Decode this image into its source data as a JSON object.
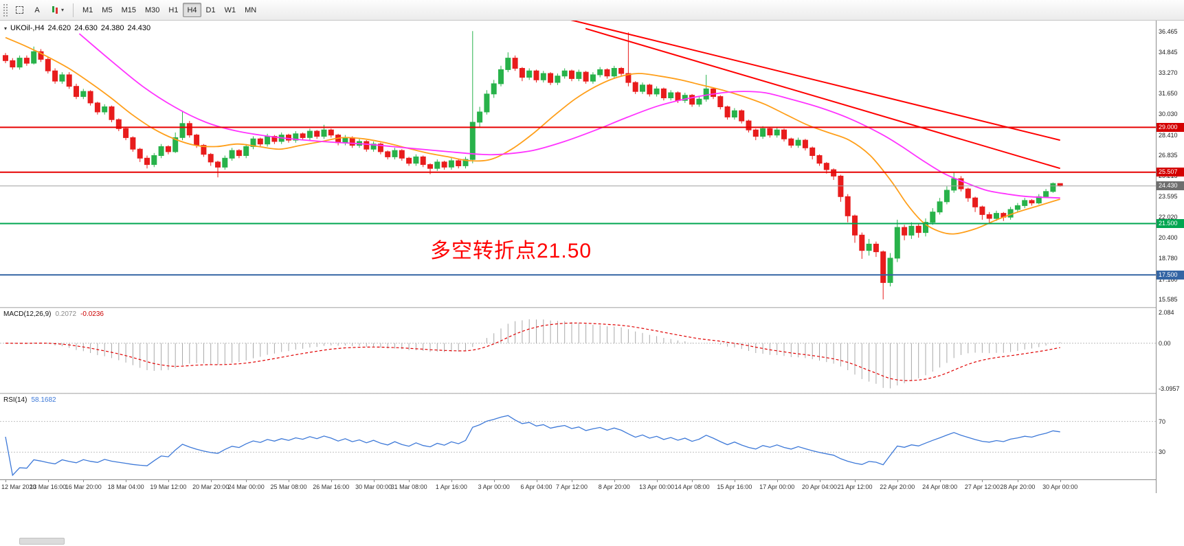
{
  "toolbar": {
    "tools": [
      {
        "id": "select",
        "label": ""
      },
      {
        "id": "text",
        "label": "A"
      },
      {
        "id": "indicators",
        "label": "",
        "caret": "▾"
      }
    ],
    "timeframes": [
      "M1",
      "M5",
      "M15",
      "M30",
      "H1",
      "H4",
      "D1",
      "W1",
      "MN"
    ],
    "active_timeframe": "H4"
  },
  "chart": {
    "title": {
      "collapse_icon": "▾",
      "symbol": "UKOil-,H4",
      "open": "24.620",
      "high": "24.630",
      "low": "24.380",
      "close": "24.430"
    },
    "annotation": {
      "text": "多空转折点21.50",
      "color": "#ff0000"
    },
    "y_axis_labels": [
      "36.465",
      "34.845",
      "33.270",
      "31.650",
      "30.030",
      "28.410",
      "26.835",
      "25.215",
      "23.595",
      "22.020",
      "20.400",
      "18.780",
      "17.160",
      "15.585"
    ]
  },
  "colors": {
    "up": "#28b24a",
    "down": "#e81c1c",
    "ma_fast": "#ff9f1a",
    "ma_slow": "#ff33ff",
    "trendline": "#ff0000",
    "macd_hist": "#a8a8a8",
    "macd_signal": "#e00000",
    "rsi": "#3c78d8",
    "annotation": "#ff0000"
  },
  "chart_data": {
    "type": "candlestick",
    "symbol": "UKOil-",
    "timeframe": "H4",
    "y_range": [
      15.585,
      36.465
    ],
    "x_labels": [
      "12 Mar 2020",
      "13 Mar 16:00",
      "16 Mar 20:00",
      "18 Mar 04:00",
      "19 Mar 12:00",
      "20 Mar 20:00",
      "24 Mar 00:00",
      "25 Mar 08:00",
      "26 Mar 16:00",
      "30 Mar 00:00",
      "31 Mar 08:00",
      "1 Apr 16:00",
      "3 Apr 00:00",
      "6 Apr 04:00",
      "7 Apr 12:00",
      "8 Apr 20:00",
      "13 Apr 00:00",
      "14 Apr 08:00",
      "15 Apr 16:00",
      "17 Apr 00:00",
      "20 Apr 04:00",
      "21 Apr 12:00",
      "22 Apr 20:00",
      "24 Apr 08:00",
      "27 Apr 12:00",
      "28 Apr 20:00",
      "30 Apr 00:00"
    ],
    "ohlc": [
      [
        34.6,
        34.8,
        34.0,
        34.2
      ],
      [
        34.2,
        34.4,
        33.5,
        33.7
      ],
      [
        33.7,
        34.6,
        33.5,
        34.4
      ],
      [
        34.4,
        34.6,
        33.8,
        34.0
      ],
      [
        34.0,
        35.3,
        33.9,
        34.9
      ],
      [
        34.9,
        35.1,
        34.1,
        34.3
      ],
      [
        34.3,
        34.5,
        33.2,
        33.4
      ],
      [
        33.4,
        33.6,
        32.4,
        32.6
      ],
      [
        32.6,
        33.3,
        32.4,
        33.1
      ],
      [
        33.1,
        33.3,
        32.0,
        32.2
      ],
      [
        32.2,
        32.4,
        31.2,
        31.4
      ],
      [
        31.4,
        32.0,
        31.2,
        31.8
      ],
      [
        31.8,
        31.9,
        30.7,
        30.9
      ],
      [
        30.9,
        31.0,
        30.0,
        30.2
      ],
      [
        30.2,
        30.8,
        30.0,
        30.6
      ],
      [
        30.6,
        30.7,
        29.4,
        29.6
      ],
      [
        29.6,
        29.7,
        28.7,
        28.9
      ],
      [
        28.9,
        29.0,
        28.0,
        28.2
      ],
      [
        28.2,
        28.3,
        27.1,
        27.3
      ],
      [
        27.3,
        27.4,
        26.3,
        26.6
      ],
      [
        26.6,
        26.8,
        25.8,
        26.1
      ],
      [
        26.1,
        27.0,
        25.9,
        26.8
      ],
      [
        26.8,
        27.7,
        26.6,
        27.5
      ],
      [
        27.5,
        27.6,
        26.9,
        27.1
      ],
      [
        27.1,
        28.6,
        27.0,
        28.2
      ],
      [
        28.2,
        30.3,
        28.0,
        29.3
      ],
      [
        29.3,
        29.5,
        28.2,
        28.4
      ],
      [
        28.4,
        28.5,
        27.4,
        27.6
      ],
      [
        27.6,
        27.7,
        26.7,
        26.9
      ],
      [
        26.9,
        27.0,
        26.0,
        26.3
      ],
      [
        26.3,
        26.4,
        25.1,
        25.9
      ],
      [
        25.9,
        26.8,
        25.7,
        26.6
      ],
      [
        26.6,
        27.4,
        26.4,
        27.2
      ],
      [
        27.2,
        27.3,
        26.6,
        26.8
      ],
      [
        26.8,
        27.7,
        26.6,
        27.5
      ],
      [
        27.5,
        28.3,
        27.3,
        28.1
      ],
      [
        28.1,
        28.2,
        27.5,
        27.7
      ],
      [
        27.7,
        28.5,
        27.5,
        28.3
      ],
      [
        28.3,
        28.4,
        27.7,
        27.9
      ],
      [
        27.9,
        28.6,
        27.7,
        28.4
      ],
      [
        28.4,
        28.5,
        27.8,
        28.0
      ],
      [
        28.0,
        28.7,
        27.8,
        28.5
      ],
      [
        28.5,
        28.6,
        28.0,
        28.2
      ],
      [
        28.2,
        28.9,
        28.0,
        28.7
      ],
      [
        28.7,
        28.8,
        28.1,
        28.3
      ],
      [
        28.3,
        29.2,
        28.1,
        28.8
      ],
      [
        28.8,
        28.9,
        28.2,
        28.4
      ],
      [
        28.4,
        28.5,
        27.6,
        27.8
      ],
      [
        27.8,
        28.4,
        27.6,
        28.2
      ],
      [
        28.2,
        28.3,
        27.4,
        27.6
      ],
      [
        27.6,
        28.1,
        27.4,
        27.9
      ],
      [
        27.9,
        28.0,
        27.1,
        27.3
      ],
      [
        27.3,
        27.9,
        27.1,
        27.7
      ],
      [
        27.7,
        27.8,
        26.9,
        27.1
      ],
      [
        27.1,
        27.2,
        26.5,
        26.7
      ],
      [
        26.7,
        27.4,
        26.5,
        27.2
      ],
      [
        27.2,
        27.3,
        26.4,
        26.6
      ],
      [
        26.6,
        26.7,
        26.0,
        26.2
      ],
      [
        26.2,
        26.9,
        26.0,
        26.7
      ],
      [
        26.7,
        26.8,
        25.9,
        26.1
      ],
      [
        26.1,
        26.2,
        25.35,
        25.8
      ],
      [
        25.8,
        26.5,
        25.6,
        26.3
      ],
      [
        26.3,
        26.4,
        25.7,
        25.9
      ],
      [
        25.9,
        26.6,
        25.7,
        26.4
      ],
      [
        26.4,
        26.5,
        25.8,
        26.0
      ],
      [
        26.0,
        26.7,
        25.8,
        26.5
      ],
      [
        26.5,
        36.5,
        26.2,
        29.4
      ],
      [
        29.4,
        30.6,
        29.0,
        30.2
      ],
      [
        30.2,
        31.9,
        30.0,
        31.6
      ],
      [
        31.6,
        32.7,
        31.3,
        32.4
      ],
      [
        32.4,
        33.8,
        32.2,
        33.5
      ],
      [
        33.5,
        34.85,
        33.3,
        34.4
      ],
      [
        34.4,
        34.6,
        33.4,
        33.6
      ],
      [
        33.6,
        33.7,
        32.6,
        32.9
      ],
      [
        32.9,
        33.6,
        32.7,
        33.4
      ],
      [
        33.4,
        33.5,
        32.5,
        32.7
      ],
      [
        32.7,
        33.4,
        32.5,
        33.2
      ],
      [
        33.2,
        33.3,
        32.3,
        32.5
      ],
      [
        32.5,
        33.2,
        32.3,
        33.0
      ],
      [
        33.0,
        33.6,
        32.8,
        33.4
      ],
      [
        33.4,
        33.5,
        32.6,
        32.8
      ],
      [
        32.8,
        33.5,
        32.6,
        33.3
      ],
      [
        33.3,
        33.4,
        32.4,
        32.6
      ],
      [
        32.6,
        33.3,
        32.4,
        33.1
      ],
      [
        33.1,
        33.7,
        32.9,
        33.5
      ],
      [
        33.5,
        33.6,
        32.8,
        33.0
      ],
      [
        33.0,
        33.8,
        32.8,
        33.6
      ],
      [
        33.6,
        33.7,
        33.0,
        33.2
      ],
      [
        33.2,
        36.4,
        32.2,
        32.5
      ],
      [
        32.5,
        32.6,
        31.6,
        31.8
      ],
      [
        31.8,
        32.5,
        31.6,
        32.3
      ],
      [
        32.3,
        32.4,
        31.4,
        31.6
      ],
      [
        31.6,
        32.2,
        31.4,
        32.0
      ],
      [
        32.0,
        32.1,
        31.1,
        31.3
      ],
      [
        31.3,
        31.9,
        31.1,
        31.7
      ],
      [
        31.7,
        31.8,
        30.9,
        31.1
      ],
      [
        31.1,
        31.7,
        30.9,
        31.5
      ],
      [
        31.5,
        31.6,
        30.6,
        30.8
      ],
      [
        30.8,
        31.4,
        30.6,
        31.2
      ],
      [
        31.2,
        33.1,
        31.0,
        32.0
      ],
      [
        32.0,
        32.1,
        31.2,
        31.4
      ],
      [
        31.4,
        31.5,
        30.4,
        30.6
      ],
      [
        30.6,
        30.7,
        29.6,
        29.8
      ],
      [
        29.8,
        30.5,
        29.6,
        30.3
      ],
      [
        30.3,
        30.4,
        29.3,
        29.5
      ],
      [
        29.5,
        29.6,
        28.6,
        28.8
      ],
      [
        28.8,
        28.9,
        28.0,
        28.3
      ],
      [
        28.3,
        29.1,
        28.1,
        28.9
      ],
      [
        28.9,
        29.0,
        28.2,
        28.4
      ],
      [
        28.4,
        29.0,
        28.2,
        28.8
      ],
      [
        28.8,
        28.9,
        27.9,
        28.1
      ],
      [
        28.1,
        28.2,
        27.4,
        27.6
      ],
      [
        27.6,
        28.2,
        27.4,
        28.0
      ],
      [
        28.0,
        28.1,
        27.2,
        27.4
      ],
      [
        27.4,
        27.5,
        26.5,
        26.8
      ],
      [
        26.8,
        26.9,
        26.0,
        26.2
      ],
      [
        26.2,
        26.3,
        25.4,
        25.7
      ],
      [
        25.7,
        25.8,
        24.9,
        25.2
      ],
      [
        25.2,
        25.3,
        23.2,
        23.6
      ],
      [
        23.6,
        23.8,
        21.6,
        22.1
      ],
      [
        22.1,
        22.2,
        20.0,
        20.6
      ],
      [
        20.6,
        20.8,
        18.75,
        19.4
      ],
      [
        19.4,
        20.3,
        19.0,
        19.9
      ],
      [
        19.9,
        20.1,
        18.9,
        19.3
      ],
      [
        19.3,
        19.4,
        15.59,
        16.9
      ],
      [
        16.9,
        19.2,
        16.6,
        18.8
      ],
      [
        18.8,
        21.8,
        18.5,
        21.2
      ],
      [
        21.2,
        21.4,
        20.2,
        20.6
      ],
      [
        20.6,
        21.6,
        20.3,
        21.3
      ],
      [
        21.3,
        21.5,
        20.4,
        20.8
      ],
      [
        20.8,
        21.9,
        20.5,
        21.6
      ],
      [
        21.6,
        22.7,
        21.4,
        22.4
      ],
      [
        22.4,
        23.5,
        22.2,
        23.2
      ],
      [
        23.2,
        24.4,
        23.0,
        24.1
      ],
      [
        24.1,
        25.5,
        23.9,
        25.0
      ],
      [
        25.0,
        25.2,
        24.0,
        24.2
      ],
      [
        24.2,
        24.3,
        23.2,
        23.5
      ],
      [
        23.5,
        23.6,
        22.4,
        22.8
      ],
      [
        22.8,
        22.9,
        21.8,
        22.2
      ],
      [
        22.2,
        22.4,
        21.5,
        21.9
      ],
      [
        21.9,
        22.5,
        21.7,
        22.3
      ],
      [
        22.3,
        22.4,
        21.7,
        22.0
      ],
      [
        22.0,
        22.8,
        21.8,
        22.6
      ],
      [
        22.6,
        23.1,
        22.4,
        22.9
      ],
      [
        22.9,
        23.5,
        22.7,
        23.3
      ],
      [
        23.3,
        23.4,
        22.9,
        23.1
      ],
      [
        23.1,
        23.8,
        23.0,
        23.6
      ],
      [
        23.6,
        24.2,
        23.5,
        24.0
      ],
      [
        24.0,
        24.7,
        23.9,
        24.62
      ],
      [
        24.62,
        24.63,
        24.38,
        24.43
      ]
    ],
    "ma_fast_anchors": [
      [
        0.0,
        36.0
      ],
      [
        0.02,
        35.3
      ],
      [
        0.04,
        34.5
      ],
      [
        0.06,
        33.6
      ],
      [
        0.08,
        32.5
      ],
      [
        0.1,
        31.3
      ],
      [
        0.12,
        30.0
      ],
      [
        0.14,
        28.9
      ],
      [
        0.16,
        28.1
      ],
      [
        0.18,
        27.6
      ],
      [
        0.2,
        27.5
      ],
      [
        0.22,
        27.7
      ],
      [
        0.24,
        27.5
      ],
      [
        0.26,
        27.3
      ],
      [
        0.28,
        27.6
      ],
      [
        0.3,
        27.9
      ],
      [
        0.32,
        28.2
      ],
      [
        0.34,
        28.1
      ],
      [
        0.36,
        27.8
      ],
      [
        0.38,
        27.4
      ],
      [
        0.4,
        27.0
      ],
      [
        0.42,
        26.7
      ],
      [
        0.44,
        26.4
      ],
      [
        0.46,
        26.5
      ],
      [
        0.48,
        27.3
      ],
      [
        0.5,
        28.5
      ],
      [
        0.52,
        29.9
      ],
      [
        0.54,
        31.2
      ],
      [
        0.56,
        32.2
      ],
      [
        0.58,
        32.9
      ],
      [
        0.6,
        33.2
      ],
      [
        0.62,
        33.0
      ],
      [
        0.64,
        32.7
      ],
      [
        0.66,
        32.3
      ],
      [
        0.68,
        31.9
      ],
      [
        0.7,
        31.4
      ],
      [
        0.72,
        30.8
      ],
      [
        0.74,
        30.0
      ],
      [
        0.76,
        29.2
      ],
      [
        0.78,
        28.6
      ],
      [
        0.8,
        28.0
      ],
      [
        0.82,
        26.8
      ],
      [
        0.84,
        24.8
      ],
      [
        0.855,
        23.0
      ],
      [
        0.87,
        21.6
      ],
      [
        0.885,
        20.9
      ],
      [
        0.9,
        20.7
      ],
      [
        0.92,
        21.1
      ],
      [
        0.94,
        21.8
      ],
      [
        0.96,
        22.4
      ],
      [
        0.98,
        22.9
      ],
      [
        1.0,
        23.4
      ]
    ],
    "ma_slow_anchors": [
      [
        0.07,
        36.3
      ],
      [
        0.1,
        34.2
      ],
      [
        0.13,
        32.2
      ],
      [
        0.16,
        30.6
      ],
      [
        0.19,
        29.4
      ],
      [
        0.22,
        28.7
      ],
      [
        0.26,
        28.2
      ],
      [
        0.3,
        27.9
      ],
      [
        0.34,
        27.7
      ],
      [
        0.38,
        27.4
      ],
      [
        0.42,
        27.1
      ],
      [
        0.45,
        26.9
      ],
      [
        0.47,
        26.9
      ],
      [
        0.5,
        27.2
      ],
      [
        0.53,
        27.9
      ],
      [
        0.56,
        28.8
      ],
      [
        0.59,
        29.8
      ],
      [
        0.62,
        30.7
      ],
      [
        0.65,
        31.3
      ],
      [
        0.68,
        31.7
      ],
      [
        0.7,
        31.8
      ],
      [
        0.72,
        31.7
      ],
      [
        0.74,
        31.3
      ],
      [
        0.77,
        30.6
      ],
      [
        0.8,
        29.7
      ],
      [
        0.83,
        28.5
      ],
      [
        0.85,
        27.5
      ],
      [
        0.87,
        26.4
      ],
      [
        0.89,
        25.4
      ],
      [
        0.91,
        24.7
      ],
      [
        0.93,
        24.1
      ],
      [
        0.95,
        23.8
      ],
      [
        0.97,
        23.6
      ],
      [
        1.0,
        23.5
      ]
    ],
    "trendlines": [
      {
        "x1": 0.5,
        "p1": 38.1,
        "x2": 1.0,
        "p2": 28.0
      },
      {
        "x1": 0.55,
        "p1": 36.7,
        "x2": 1.0,
        "p2": 25.8
      }
    ],
    "levels": [
      {
        "price": 29.0,
        "label": "29.000",
        "line_color": "#e60000",
        "badge_color": "#d40000",
        "thickness": 2
      },
      {
        "price": 25.507,
        "label": "25.507",
        "line_color": "#e60000",
        "badge_color": "#d40000",
        "thickness": 2
      },
      {
        "price": 21.5,
        "label": "21.500",
        "line_color": "#00a651",
        "badge_color": "#00a651",
        "thickness": 2
      },
      {
        "price": 17.5,
        "label": "17.500",
        "line_color": "#3465a4",
        "badge_color": "#3465a4",
        "thickness": 2
      }
    ],
    "current_price": {
      "value": 24.43,
      "label": "24.430",
      "line_color": "#a0a0a0",
      "badge_color": "#6e6e6e"
    },
    "macd": {
      "label": "MACD(12,26,9)",
      "value": "0.2072",
      "signal_value": "-0.0236",
      "params": [
        12,
        26,
        9
      ],
      "scale": [
        -3.0957,
        2.084
      ],
      "axis_labels": [
        "2.084",
        "0.00",
        "-3.0957"
      ]
    },
    "rsi": {
      "label": "RSI(14)",
      "value": "58.1682",
      "period": 14,
      "levels": [
        70,
        30
      ],
      "range": [
        0,
        100
      ],
      "axis_labels": [
        "70",
        "30"
      ]
    }
  }
}
